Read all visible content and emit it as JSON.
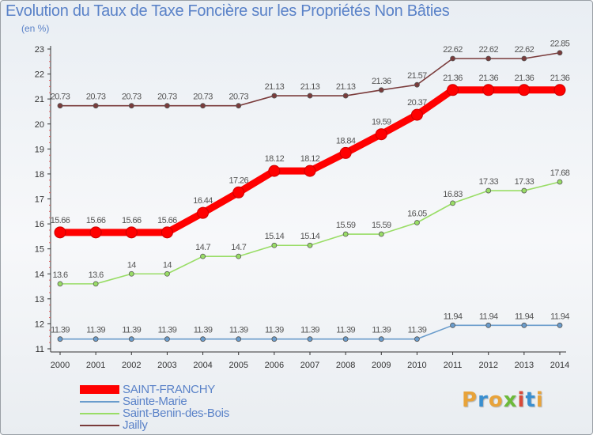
{
  "title": "Evolution du Taux de Taxe Foncière sur les Propriétés Non Bâties",
  "unit_label": "(en %)",
  "logo": {
    "text": "Proxiti",
    "colors": [
      "#e8a33a",
      "#3a8fd0",
      "#e8a33a",
      "#6cba3a",
      "#d84a3a",
      "#3a8fd0",
      "#e8a33a"
    ]
  },
  "chart_data": {
    "type": "line",
    "title": "Evolution du Taux de Taxe Foncière sur les Propriétés Non Bâties",
    "xlabel": "",
    "ylabel": "(en %)",
    "ylim": [
      11,
      23
    ],
    "yticks": [
      11,
      12,
      13,
      14,
      15,
      16,
      17,
      18,
      19,
      20,
      21,
      22,
      23
    ],
    "grid": false,
    "legend_position": "bottom-left",
    "x": [
      "2000",
      "2001",
      "2002",
      "2003",
      "2004",
      "2005",
      "2006",
      "2007",
      "2008",
      "2009",
      "2010",
      "2011",
      "2012",
      "2013",
      "2014"
    ],
    "series": [
      {
        "name": "SAINT-FRANCHY",
        "color": "#ff0000",
        "values": [
          15.66,
          15.66,
          15.66,
          15.66,
          16.44,
          17.26,
          18.12,
          18.12,
          18.84,
          19.59,
          20.37,
          21.36,
          21.36,
          21.36,
          21.36
        ],
        "labels": [
          "15.66",
          "15.66",
          "15.66",
          "15.66",
          "16.44",
          "17.26",
          "18.12",
          "18.12",
          "18.84",
          "19.59",
          "20.37",
          "21.36",
          "21.36",
          "21.36",
          "21.36"
        ]
      },
      {
        "name": "Sainte-Marie",
        "color": "#6a9ccc",
        "values": [
          11.39,
          11.39,
          11.39,
          11.39,
          11.39,
          11.39,
          11.39,
          11.39,
          11.39,
          11.39,
          11.39,
          11.94,
          11.94,
          11.94,
          11.94
        ],
        "labels": [
          "11.39",
          "11.39",
          "11.39",
          "11.39",
          "11.39",
          "11.39",
          "11.39",
          "11.39",
          "11.39",
          "11.39",
          "11.39",
          "11.94",
          "11.94",
          "11.94",
          "11.94"
        ]
      },
      {
        "name": "Saint-Benin-des-Bois",
        "color": "#99dd66",
        "values": [
          13.6,
          13.6,
          14,
          14,
          14.7,
          14.7,
          15.14,
          15.14,
          15.59,
          15.59,
          16.05,
          16.83,
          17.33,
          17.33,
          17.68
        ],
        "labels": [
          "13.6",
          "13.6",
          "14",
          "14",
          "14.7",
          "14.7",
          "15.14",
          "15.14",
          "15.59",
          "15.59",
          "16.05",
          "16.83",
          "17.33",
          "17.33",
          "17.68"
        ]
      },
      {
        "name": "Jailly",
        "color": "#7a3b3b",
        "values": [
          20.73,
          20.73,
          20.73,
          20.73,
          20.73,
          20.73,
          21.13,
          21.13,
          21.13,
          21.36,
          21.57,
          22.62,
          22.62,
          22.62,
          22.85
        ],
        "labels": [
          "20.73",
          "20.73",
          "20.73",
          "20.73",
          "20.73",
          "20.73",
          "21.13",
          "21.13",
          "21.13",
          "21.36",
          "21.57",
          "22.62",
          "22.62",
          "22.62",
          "22.85"
        ]
      }
    ]
  }
}
